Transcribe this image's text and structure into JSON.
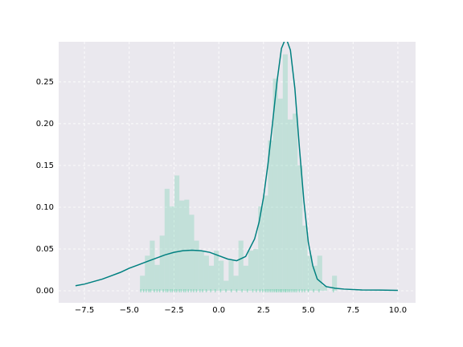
{
  "chart_data": {
    "type": "histogram",
    "bins": [
      -4.4,
      -4.125,
      -3.85,
      -3.575,
      -3.3,
      -3.025,
      -2.75,
      -2.475,
      -2.2,
      -1.925,
      -1.65,
      -1.375,
      -1.1,
      -0.825,
      -0.55,
      -0.275,
      0,
      0.275,
      0.55,
      0.825,
      1.1,
      1.375,
      1.65,
      1.925,
      2.2,
      2.475,
      2.75,
      3.025,
      3.3,
      3.575,
      3.85,
      4.125,
      4.4,
      4.675,
      4.95,
      5.225,
      5.5,
      5.775,
      6.05,
      6.325,
      6.6
    ],
    "values": [
      0.018,
      0.042,
      0.06,
      0.031,
      0.066,
      0.122,
      0.101,
      0.138,
      0.108,
      0.109,
      0.091,
      0.06,
      0.048,
      0.042,
      0.03,
      0.048,
      0.036,
      0.012,
      0.036,
      0.018,
      0.06,
      0.03,
      0.048,
      0.05,
      0.101,
      0.114,
      0.18,
      0.254,
      0.23,
      0.283,
      0.205,
      0.212,
      0.15,
      0.078,
      0.042,
      0.03,
      0.042,
      0.006,
      0,
      0.018
    ],
    "color": "#66cdaa",
    "line": {
      "color": "#008080",
      "x": [
        -8,
        -7.5,
        -7,
        -6.5,
        -6,
        -5.5,
        -5,
        -4.5,
        -4,
        -3.5,
        -3,
        -2.5,
        -2,
        -1.5,
        -1,
        -0.5,
        0,
        0.5,
        1,
        1.5,
        2,
        2.25,
        2.5,
        2.75,
        3,
        3.25,
        3.5,
        3.75,
        4,
        4.25,
        4.5,
        4.75,
        5,
        5.25,
        5.5,
        6,
        6.5,
        7,
        8,
        9,
        10
      ],
      "values": [
        0.006,
        0.008,
        0.011,
        0.014,
        0.018,
        0.022,
        0.027,
        0.031,
        0.035,
        0.039,
        0.043,
        0.046,
        0.048,
        0.0485,
        0.048,
        0.046,
        0.042,
        0.038,
        0.036,
        0.041,
        0.062,
        0.082,
        0.112,
        0.152,
        0.2,
        0.25,
        0.29,
        0.303,
        0.288,
        0.242,
        0.172,
        0.108,
        0.058,
        0.03,
        0.014,
        0.005,
        0.003,
        0.002,
        0.001,
        0.0008,
        0.0005
      ]
    },
    "rug": {
      "color": "#66cdaa",
      "values": [
        -4.35,
        -4.2,
        -4.05,
        -3.9,
        -3.8,
        -3.6,
        -3.45,
        -3.3,
        -3.1,
        -2.95,
        -2.85,
        -2.7,
        -2.6,
        -2.45,
        -2.35,
        -2.2,
        -2.1,
        -1.95,
        -1.85,
        -1.7,
        -1.55,
        -1.4,
        -1.25,
        -1.05,
        -0.9,
        -0.7,
        -0.45,
        -0.2,
        0.1,
        0.4,
        0.7,
        1.0,
        1.3,
        1.6,
        1.9,
        2.1,
        2.3,
        2.45,
        2.6,
        2.7,
        2.8,
        2.9,
        3.0,
        3.1,
        3.2,
        3.25,
        3.35,
        3.45,
        3.5,
        3.6,
        3.7,
        3.75,
        3.85,
        3.95,
        4.05,
        4.15,
        4.25,
        4.35,
        4.5,
        4.65,
        4.8,
        5.0,
        5.3,
        5.6,
        6.4
      ]
    },
    "xlim": [
      -8.94,
      10.99
    ],
    "ylim": [
      -0.0144,
      0.298
    ],
    "xticks": [
      {
        "value": -7.5,
        "label": "−7.5"
      },
      {
        "value": -5,
        "label": "−5.0"
      },
      {
        "value": -2.5,
        "label": "−2.5"
      },
      {
        "value": 0,
        "label": "0.0"
      },
      {
        "value": 2.5,
        "label": "2.5"
      },
      {
        "value": 5,
        "label": "5.0"
      },
      {
        "value": 7.5,
        "label": "7.5"
      },
      {
        "value": 10,
        "label": "10.0"
      }
    ],
    "yticks": [
      {
        "value": 0,
        "label": "0.00"
      },
      {
        "value": 0.05,
        "label": "0.05"
      },
      {
        "value": 0.1,
        "label": "0.10"
      },
      {
        "value": 0.15,
        "label": "0.15"
      },
      {
        "value": 0.2,
        "label": "0.20"
      },
      {
        "value": 0.25,
        "label": "0.25"
      }
    ],
    "grid": true
  }
}
